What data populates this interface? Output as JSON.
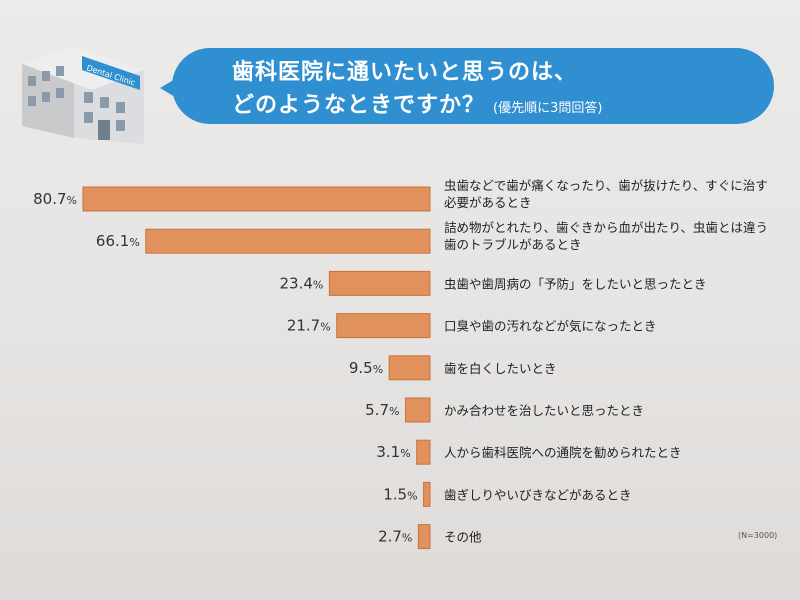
{
  "header": {
    "sign_text": "Dental Clinic",
    "title_line1": "歯科医院に通いたいと思うのは、",
    "title_line2": "どのようなときですか？",
    "title_note": "(優先順に3問回答)"
  },
  "chart_data": {
    "type": "bar",
    "orientation": "horizontal",
    "title": "歯科医院に通いたいと思うのは、どのようなときですか？",
    "categories": [
      [
        "虫歯などで歯が痛くなったり、歯が抜けたり、すぐに治す",
        "必要があるとき"
      ],
      [
        "詰め物がとれたり、歯ぐきから血が出たり、虫歯とは違う",
        "歯のトラブルがあるとき"
      ],
      [
        "虫歯や歯周病の「予防」をしたいと思ったとき"
      ],
      [
        "口臭や歯の汚れなどが気になったとき"
      ],
      [
        "歯を白くしたいとき"
      ],
      [
        "かみ合わせを治したいと思ったとき"
      ],
      [
        "人から歯科医院への通院を勧められたとき"
      ],
      [
        "歯ぎしりやいびきなどがあるとき"
      ],
      [
        "その他"
      ]
    ],
    "values": [
      80.7,
      66.1,
      23.4,
      21.7,
      9.5,
      5.7,
      3.1,
      1.5,
      2.7
    ],
    "value_labels": [
      "80.7%",
      "66.1%",
      "23.4%",
      "21.7%",
      "9.5%",
      "5.7%",
      "3.1%",
      "1.5%",
      "2.7%"
    ],
    "unit": "%",
    "xlim": [
      0,
      100
    ],
    "bar_color": "#e0915c",
    "bar_edge_color": "#c8743e",
    "note": "(N=3000)",
    "grid": false
  }
}
